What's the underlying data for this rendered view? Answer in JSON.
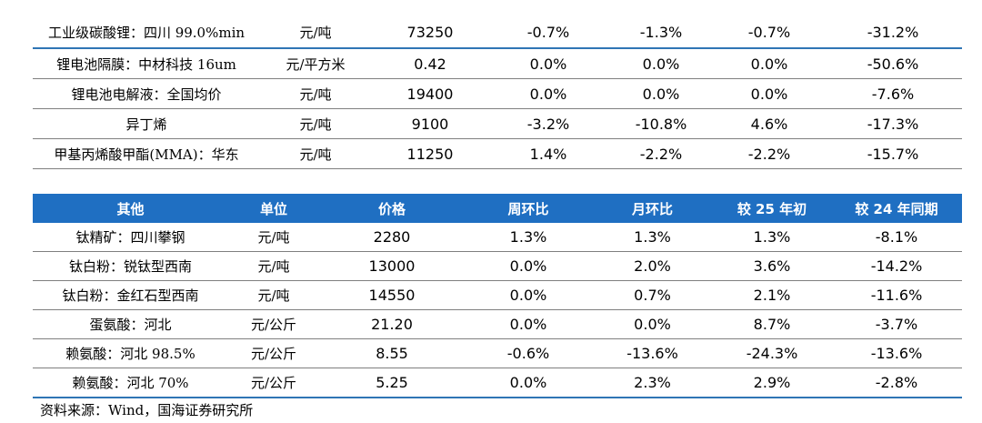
{
  "top_table": {
    "rows": [
      {
        "name": "工业级碳酸锂：四川 99.0%min",
        "unit": "元/吨",
        "price": "73250",
        "wow": "-0.7%",
        "mom": "-1.3%",
        "ytd": "-0.7%",
        "yoy": "-31.2%"
      },
      {
        "name": "锂电池隔膜：中材科技 16um",
        "unit": "元/平方米",
        "price": "0.42",
        "wow": "0.0%",
        "mom": "0.0%",
        "ytd": "0.0%",
        "yoy": "-50.6%"
      },
      {
        "name": "锂电池电解液：全国均价",
        "unit": "元/吨",
        "price": "19400",
        "wow": "0.0%",
        "mom": "0.0%",
        "ytd": "0.0%",
        "yoy": "-7.6%"
      },
      {
        "name": "异丁烯",
        "unit": "元/吨",
        "price": "9100",
        "wow": "-3.2%",
        "mom": "-10.8%",
        "ytd": "4.6%",
        "yoy": "-17.3%"
      },
      {
        "name": "甲基丙烯酸甲酯(MMA)：华东",
        "unit": "元/吨",
        "price": "11250",
        "wow": "1.4%",
        "mom": "-2.2%",
        "ytd": "-2.2%",
        "yoy": "-15.7%"
      }
    ]
  },
  "bottom_table": {
    "headers": {
      "name": "其他",
      "unit": "单位",
      "price": "价格",
      "wow": "周环比",
      "mom": "月环比",
      "ytd": "较 25 年初",
      "yoy": "较 24 年同期"
    },
    "rows": [
      {
        "name": "钛精矿：四川攀钢",
        "unit": "元/吨",
        "price": "2280",
        "wow": "1.3%",
        "mom": "1.3%",
        "ytd": "1.3%",
        "yoy": "-8.1%"
      },
      {
        "name": "钛白粉：锐钛型西南",
        "unit": "元/吨",
        "price": "13000",
        "wow": "0.0%",
        "mom": "2.0%",
        "ytd": "3.6%",
        "yoy": "-14.2%"
      },
      {
        "name": "钛白粉：金红石型西南",
        "unit": "元/吨",
        "price": "14550",
        "wow": "0.0%",
        "mom": "0.7%",
        "ytd": "2.1%",
        "yoy": "-11.6%"
      },
      {
        "name": "蛋氨酸：河北",
        "unit": "元/公斤",
        "price": "21.20",
        "wow": "0.0%",
        "mom": "0.0%",
        "ytd": "8.7%",
        "yoy": "-3.7%"
      },
      {
        "name": "赖氨酸：河北 98.5%",
        "unit": "元/公斤",
        "price": "8.55",
        "wow": "-0.6%",
        "mom": "-13.6%",
        "ytd": "-24.3%",
        "yoy": "-13.6%"
      },
      {
        "name": "赖氨酸：河北 70%",
        "unit": "元/公斤",
        "price": "5.25",
        "wow": "0.0%",
        "mom": "2.3%",
        "ytd": "2.9%",
        "yoy": "-2.8%"
      }
    ]
  },
  "source_note": "资料来源：Wind，国海证券研究所"
}
